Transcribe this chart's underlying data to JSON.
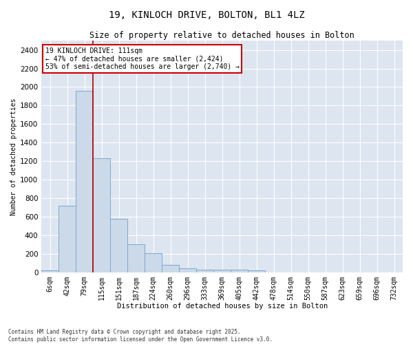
{
  "title": "19, KINLOCH DRIVE, BOLTON, BL1 4LZ",
  "subtitle": "Size of property relative to detached houses in Bolton",
  "xlabel": "Distribution of detached houses by size in Bolton",
  "ylabel": "Number of detached properties",
  "bar_color": "#ccd9e8",
  "bar_edge_color": "#7aaad0",
  "background_color": "#dde5f0",
  "grid_color": "#ffffff",
  "categories": [
    "6sqm",
    "42sqm",
    "79sqm",
    "115sqm",
    "151sqm",
    "187sqm",
    "224sqm",
    "260sqm",
    "296sqm",
    "333sqm",
    "369sqm",
    "405sqm",
    "442sqm",
    "478sqm",
    "514sqm",
    "550sqm",
    "587sqm",
    "623sqm",
    "659sqm",
    "696sqm",
    "732sqm"
  ],
  "values": [
    20,
    720,
    1960,
    1230,
    580,
    305,
    205,
    80,
    40,
    30,
    30,
    30,
    20,
    0,
    0,
    0,
    0,
    0,
    0,
    0,
    0
  ],
  "ylim": [
    0,
    2500
  ],
  "yticks": [
    0,
    200,
    400,
    600,
    800,
    1000,
    1200,
    1400,
    1600,
    1800,
    2000,
    2200,
    2400
  ],
  "property_line_index": 2,
  "annotation_text": "19 KINLOCH DRIVE: 111sqm\n← 47% of detached houses are smaller (2,424)\n53% of semi-detached houses are larger (2,740) →",
  "annotation_box_color": "#cc0000",
  "property_line_color": "#aa0000",
  "footnote": "Contains HM Land Registry data © Crown copyright and database right 2025.\nContains public sector information licensed under the Open Government Licence v3.0."
}
